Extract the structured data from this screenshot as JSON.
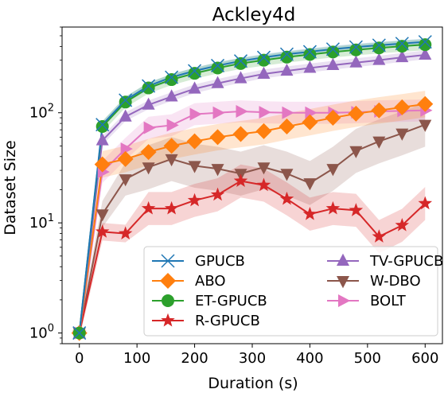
{
  "chart_data": {
    "type": "line",
    "title": "Ackley4d",
    "xlabel": "Duration (s)",
    "ylabel": "Dataset Size",
    "xlim": [
      -30,
      630
    ],
    "ylim": [
      0.8,
      600
    ],
    "yscale": "log",
    "x_ticks": [
      0,
      100,
      200,
      300,
      400,
      500,
      600
    ],
    "y_ticks": [
      {
        "value": 1,
        "base": "10",
        "exp": "0"
      },
      {
        "value": 10,
        "base": "10",
        "exp": "1"
      },
      {
        "value": 100,
        "base": "10",
        "exp": "2"
      }
    ],
    "grid": false,
    "legend": {
      "placement": "lower-right",
      "columns": 2
    },
    "series": [
      {
        "name": "GPUCB",
        "color": "#1f77b4",
        "marker": "x",
        "x": [
          0,
          40,
          80,
          120,
          160,
          200,
          240,
          280,
          320,
          360,
          400,
          440,
          480,
          520,
          560,
          600
        ],
        "y": [
          1,
          78,
          130,
          175,
          210,
          240,
          268,
          295,
          318,
          340,
          358,
          378,
          395,
          410,
          425,
          440
        ],
        "band": [
          0.03,
          0.03,
          0.03,
          0.03,
          0.03,
          0.03,
          0.03,
          0.03,
          0.03,
          0.03,
          0.03,
          0.03,
          0.03,
          0.03,
          0.03,
          0.03
        ]
      },
      {
        "name": "ABO",
        "color": "#ff7f0e",
        "marker": "D",
        "x": [
          0,
          40,
          80,
          120,
          160,
          200,
          240,
          280,
          320,
          360,
          400,
          440,
          480,
          520,
          560,
          600
        ],
        "y": [
          1,
          34,
          38,
          44,
          50,
          55,
          60,
          64,
          68,
          75,
          82,
          90,
          98,
          105,
          112,
          120
        ],
        "band": [
          0.05,
          0.12,
          0.12,
          0.12,
          0.12,
          0.12,
          0.12,
          0.12,
          0.12,
          0.12,
          0.12,
          0.12,
          0.12,
          0.12,
          0.12,
          0.12
        ]
      },
      {
        "name": "ET-GPUCB",
        "color": "#2ca02c",
        "marker": "o",
        "x": [
          0,
          40,
          80,
          120,
          160,
          200,
          240,
          280,
          320,
          360,
          400,
          440,
          480,
          520,
          560,
          600
        ],
        "y": [
          1,
          75,
          125,
          168,
          200,
          228,
          255,
          280,
          300,
          320,
          338,
          356,
          372,
          388,
          402,
          415
        ],
        "band": [
          0.03,
          0.05,
          0.05,
          0.05,
          0.05,
          0.05,
          0.05,
          0.05,
          0.05,
          0.05,
          0.05,
          0.05,
          0.05,
          0.05,
          0.05,
          0.05
        ]
      },
      {
        "name": "R-GPUCB",
        "color": "#d62728",
        "marker": "*",
        "x": [
          0,
          40,
          80,
          120,
          160,
          200,
          240,
          280,
          320,
          360,
          400,
          440,
          480,
          520,
          560,
          600
        ],
        "y": [
          1,
          8.3,
          8.0,
          13.5,
          13.5,
          16,
          18,
          24,
          22,
          16.5,
          12,
          13.5,
          13,
          7.5,
          9.5,
          15
        ],
        "band": [
          0.05,
          0.08,
          0.08,
          0.15,
          0.15,
          0.15,
          0.15,
          0.15,
          0.15,
          0.15,
          0.15,
          0.15,
          0.15,
          0.15,
          0.15,
          0.15
        ]
      },
      {
        "name": "TV-GPUCB",
        "color": "#9467bd",
        "marker": "^",
        "x": [
          0,
          40,
          80,
          120,
          160,
          200,
          240,
          280,
          320,
          360,
          400,
          440,
          480,
          520,
          560,
          600
        ],
        "y": [
          1,
          56,
          92,
          118,
          140,
          165,
          185,
          205,
          225,
          240,
          255,
          270,
          285,
          300,
          318,
          335
        ],
        "band": [
          0.03,
          0.04,
          0.04,
          0.04,
          0.04,
          0.04,
          0.04,
          0.04,
          0.04,
          0.04,
          0.04,
          0.04,
          0.04,
          0.04,
          0.04,
          0.04
        ]
      },
      {
        "name": "W-DBO",
        "color": "#8c564b",
        "marker": "v",
        "x": [
          0,
          40,
          80,
          120,
          160,
          200,
          240,
          280,
          320,
          360,
          400,
          440,
          480,
          520,
          560,
          600
        ],
        "y": [
          1,
          12,
          25,
          32,
          38,
          33,
          31,
          28,
          32,
          28,
          23,
          31,
          45,
          55,
          65,
          78
        ],
        "band": [
          0.05,
          0.12,
          0.15,
          0.2,
          0.2,
          0.2,
          0.2,
          0.2,
          0.2,
          0.2,
          0.2,
          0.2,
          0.2,
          0.2,
          0.2,
          0.2
        ]
      },
      {
        "name": "BOLT",
        "color": "#e377c2",
        "marker": ">",
        "x": [
          0,
          40,
          80,
          120,
          160,
          200,
          240,
          280,
          320,
          360,
          400,
          440,
          480,
          520,
          560,
          600
        ],
        "y": [
          1,
          29,
          47,
          73,
          77,
          97,
          100,
          103,
          101,
          100,
          100,
          100,
          101,
          103,
          104,
          105
        ],
        "band": [
          0.05,
          0.1,
          0.1,
          0.1,
          0.1,
          0.1,
          0.1,
          0.1,
          0.1,
          0.1,
          0.1,
          0.1,
          0.1,
          0.1,
          0.1,
          0.1
        ]
      }
    ]
  }
}
